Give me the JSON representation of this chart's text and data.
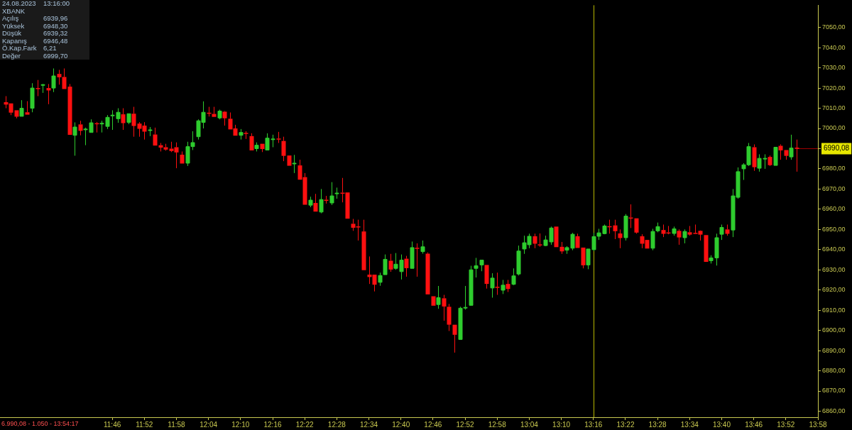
{
  "chart_data": {
    "type": "candlestick",
    "title": "XBANK",
    "annotations": [
      "24.08.2023",
      "13:16:00",
      "Açılış",
      "6939,96",
      "Yüksek",
      "6948,30",
      "Düşük",
      "6939,32",
      "Kapanış",
      "6946,48",
      "Ö.Kap.Fark",
      "6,21",
      "Değer",
      "6999,70",
      "6.990,08 - 1.050 - 13:54:17"
    ],
    "colors": [
      "#ff1010",
      "#ff1010",
      "#ff1010",
      "#2ecc2e",
      "#ff1010",
      "#2ecc2e",
      "#ff1010",
      "#2ecc2e",
      "#ff1010",
      "#2ecc2e",
      "#ff1010",
      "#ff1010",
      "#ff1010",
      "#2ecc2e",
      "#ff1010",
      "#2ecc2e",
      "#2ecc2e",
      "#ff1010",
      "#2ecc2e",
      "#2ecc2e",
      "#2ecc2e",
      "#2ecc2e",
      "#ff1010",
      "#2ecc2e",
      "#ff1010",
      "#ff1010",
      "#ff1010",
      "#2ecc2e",
      "#ff1010",
      "#ff1010",
      "#ff1010",
      "#ff1010",
      "#ff1010",
      "#ff1010",
      "#2ecc2e",
      "#2ecc2e",
      "#2ecc2e",
      "#2ecc2e",
      "#ff1010",
      "#ff1010",
      "#2ecc2e",
      "#ff1010",
      "#ff1010",
      "#ff1010",
      "#2ecc2e",
      "#ff1010",
      "#ff1010",
      "#2ecc2e",
      "#ff1010",
      "#2ecc2e",
      "#2ecc2e",
      "#ff1010",
      "#ff1010",
      "#ff1010",
      "#2ecc2e",
      "#ff1010",
      "#ff1010",
      "#2ecc2e",
      "#ff1010",
      "#2ecc2e",
      "#ff1010",
      "#2ecc2e",
      "#2ecc2e",
      "#ff1010",
      "#ff1010",
      "#ff1010",
      "#ff1010",
      "#ff1010",
      "#ff1010",
      "#ff1010",
      "#2ecc2e",
      "#2ecc2e",
      "#ff1010",
      "#2ecc2e",
      "#2ecc2e",
      "#ff1010",
      "#2ecc2e",
      "#ff1010",
      "#2ecc2e",
      "#ff1010",
      "#ff1010",
      "#2ecc2e",
      "#ff1010",
      "#ff1010",
      "#ff1010",
      "#2ecc2e",
      "#2ecc2e",
      "#2ecc2e",
      "#2ecc2e",
      "#2ecc2e",
      "#ff1010",
      "#2ecc2e",
      "#ff1010",
      "#2ecc2e",
      "#ff1010",
      "#2ecc2e",
      "#2ecc2e",
      "#2ecc2e",
      "#2ecc2e",
      "#ff1010",
      "#ff1010",
      "#2ecc2e",
      "#2ecc2e",
      "#ff1010",
      "#ff1010",
      "#2ecc2e",
      "#2ecc2e",
      "#ff1010",
      "#ff1010",
      "#2ecc2e",
      "#2ecc2e",
      "#2ecc2e",
      "#2ecc2e",
      "#ff1010",
      "#ff1010",
      "#ff1010",
      "#2ecc2e",
      "#ff1010",
      "#ff1010",
      "#ff1010",
      "#ff1010",
      "#2ecc2e",
      "#2ecc2e",
      "#ff1010",
      "#ff1010",
      "#2ecc2e",
      "#ff1010",
      "#2ecc2e",
      "#ff1010",
      "#ff1010",
      "#ff1010",
      "#ff1010",
      "#2ecc2e",
      "#2ecc2e",
      "#2ecc2e",
      "#ff1010",
      "#2ecc2e",
      "#2ecc2e",
      "#2ecc2e",
      "#2ecc2e",
      "#ff1010",
      "#2ecc2e",
      "#2ecc2e",
      "#ff1010",
      "#2ecc2e",
      "#ff1010",
      "#ff1010",
      "#2ecc2e",
      "#ff1010"
    ],
    "x": [
      "2023-08-24T11:26",
      "2023-08-24T11:27",
      "2023-08-24T11:28",
      "2023-08-24T11:29",
      "2023-08-24T11:30",
      "2023-08-24T11:31",
      "2023-08-24T11:32",
      "2023-08-24T11:33",
      "2023-08-24T11:34",
      "2023-08-24T11:35",
      "2023-08-24T11:36",
      "2023-08-24T11:37",
      "2023-08-24T11:38",
      "2023-08-24T11:39",
      "2023-08-24T11:40",
      "2023-08-24T11:41",
      "2023-08-24T11:42",
      "2023-08-24T11:43",
      "2023-08-24T11:44",
      "2023-08-24T11:45",
      "2023-08-24T11:46",
      "2023-08-24T11:47",
      "2023-08-24T11:48",
      "2023-08-24T11:49",
      "2023-08-24T11:50",
      "2023-08-24T11:51",
      "2023-08-24T11:52",
      "2023-08-24T11:53",
      "2023-08-24T11:54",
      "2023-08-24T11:55",
      "2023-08-24T11:56",
      "2023-08-24T11:57",
      "2023-08-24T11:58",
      "2023-08-24T11:59",
      "2023-08-24T12:00",
      "2023-08-24T12:01",
      "2023-08-24T12:02",
      "2023-08-24T12:03",
      "2023-08-24T12:04",
      "2023-08-24T12:05",
      "2023-08-24T12:06",
      "2023-08-24T12:07",
      "2023-08-24T12:08",
      "2023-08-24T12:09",
      "2023-08-24T12:10",
      "2023-08-24T12:11",
      "2023-08-24T12:12",
      "2023-08-24T12:13",
      "2023-08-24T12:14",
      "2023-08-24T12:15",
      "2023-08-24T12:16",
      "2023-08-24T12:17",
      "2023-08-24T12:18",
      "2023-08-24T12:19",
      "2023-08-24T12:20",
      "2023-08-24T12:21",
      "2023-08-24T12:22",
      "2023-08-24T12:23",
      "2023-08-24T12:24",
      "2023-08-24T12:25",
      "2023-08-24T12:26",
      "2023-08-24T12:27",
      "2023-08-24T12:28",
      "2023-08-24T12:29",
      "2023-08-24T12:30",
      "2023-08-24T12:31",
      "2023-08-24T12:32",
      "2023-08-24T12:33",
      "2023-08-24T12:34",
      "2023-08-24T12:35",
      "2023-08-24T12:36",
      "2023-08-24T12:37",
      "2023-08-24T12:38",
      "2023-08-24T12:39",
      "2023-08-24T12:40",
      "2023-08-24T12:41",
      "2023-08-24T12:42",
      "2023-08-24T12:43",
      "2023-08-24T12:44",
      "2023-08-24T12:45",
      "2023-08-24T12:46",
      "2023-08-24T12:47",
      "2023-08-24T12:48",
      "2023-08-24T12:49",
      "2023-08-24T12:50",
      "2023-08-24T12:51",
      "2023-08-24T12:52",
      "2023-08-24T12:53",
      "2023-08-24T12:54",
      "2023-08-24T12:55",
      "2023-08-24T12:56",
      "2023-08-24T12:57",
      "2023-08-24T12:58",
      "2023-08-24T12:59",
      "2023-08-24T13:00",
      "2023-08-24T13:01",
      "2023-08-24T13:02",
      "2023-08-24T13:03",
      "2023-08-24T13:04",
      "2023-08-24T13:05",
      "2023-08-24T13:06",
      "2023-08-24T13:07",
      "2023-08-24T13:08",
      "2023-08-24T13:09",
      "2023-08-24T13:10",
      "2023-08-24T13:11",
      "2023-08-24T13:12",
      "2023-08-24T13:13",
      "2023-08-24T13:14",
      "2023-08-24T13:15",
      "2023-08-24T13:16",
      "2023-08-24T13:17",
      "2023-08-24T13:18",
      "2023-08-24T13:19",
      "2023-08-24T13:20",
      "2023-08-24T13:21",
      "2023-08-24T13:22",
      "2023-08-24T13:23",
      "2023-08-24T13:24",
      "2023-08-24T13:25",
      "2023-08-24T13:26",
      "2023-08-24T13:27",
      "2023-08-24T13:28",
      "2023-08-24T13:29",
      "2023-08-24T13:30",
      "2023-08-24T13:31",
      "2023-08-24T13:32",
      "2023-08-24T13:33",
      "2023-08-24T13:34",
      "2023-08-24T13:35",
      "2023-08-24T13:36",
      "2023-08-24T13:37",
      "2023-08-24T13:38",
      "2023-08-24T13:39",
      "2023-08-24T13:40",
      "2023-08-24T13:41",
      "2023-08-24T13:42",
      "2023-08-24T13:43",
      "2023-08-24T13:44",
      "2023-08-24T13:45",
      "2023-08-24T13:46",
      "2023-08-24T13:47",
      "2023-08-24T13:48",
      "2023-08-24T13:49",
      "2023-08-24T13:50",
      "2023-08-24T13:51",
      "2023-08-24T13:52",
      "2023-08-24T13:53",
      "2023-08-24T13:54"
    ],
    "ohlc": [
      [
        7013,
        7016,
        7010,
        7012
      ],
      [
        7012.4,
        7012.4,
        7006.6,
        7008
      ],
      [
        7009,
        7009,
        7005,
        7006
      ],
      [
        7006,
        7014,
        7006,
        7010
      ],
      [
        7008,
        7013.5,
        7007,
        7007
      ],
      [
        7010,
        7022.4,
        7008,
        7020
      ],
      [
        7020,
        7024,
        7016,
        7019.7
      ],
      [
        7021.5,
        7022,
        7017.6,
        7021.7
      ],
      [
        7020,
        7022,
        7012,
        7019
      ],
      [
        7020,
        7029.7,
        7018,
        7026
      ],
      [
        7027,
        7029,
        7021.7,
        7025.5
      ],
      [
        7025.5,
        7029.7,
        7019.7,
        7019.7
      ],
      [
        7020.7,
        7022,
        6997,
        6997
      ],
      [
        6996.6,
        7003,
        6986.5,
        7000.7
      ],
      [
        7002,
        7003.8,
        6996.6,
        6999
      ],
      [
        6999.5,
        7000.4,
        6991.7,
        6999.7
      ],
      [
        6998,
        7004.5,
        6998,
        7002.8
      ],
      [
        7002.6,
        7003.2,
        6998,
        7002.4
      ],
      [
        7002.2,
        7003.8,
        6998,
        7002.6
      ],
      [
        7001,
        7006.6,
        6999.7,
        7005.5
      ],
      [
        7006.4,
        7009,
        6999.3,
        7006.6
      ],
      [
        7004.8,
        7010,
        7002.8,
        7008
      ],
      [
        7007,
        7010,
        6999.3,
        7002.8
      ],
      [
        7003,
        7007.3,
        7002.1,
        7007.3
      ],
      [
        7007.3,
        7010.7,
        6995.9,
        7001.4
      ],
      [
        7002.4,
        7003.1,
        6995.9,
        7000
      ],
      [
        7001.4,
        7003.1,
        6994.5,
        6998.6
      ],
      [
        6999.1,
        7000.7,
        6996.2,
        6999.3
      ],
      [
        6997,
        7000.4,
        6991.7,
        6991.7
      ],
      [
        6991.7,
        6992.8,
        6988.6,
        6990.7
      ],
      [
        6990.7,
        6992.4,
        6989,
        6989.7
      ],
      [
        6990,
        6993.4,
        6988.3,
        6989
      ],
      [
        6990.7,
        6993.1,
        6980.3,
        6988.3
      ],
      [
        6987,
        6988.6,
        6982.8,
        6982.8
      ],
      [
        6982.8,
        6993.4,
        6981.4,
        6991
      ],
      [
        6991,
        6998.6,
        6989.3,
        6993
      ],
      [
        6995.9,
        7004.5,
        6994.5,
        7003.8
      ],
      [
        7003,
        7013.4,
        7000,
        7008
      ],
      [
        7007.8,
        7010.7,
        7005.9,
        7007.6
      ],
      [
        7007.2,
        7010.7,
        7005.9,
        7005.9
      ],
      [
        7005.2,
        7009.3,
        7004.5,
        7008.6
      ],
      [
        7008.3,
        7008.6,
        7001.4,
        7005.2
      ],
      [
        7004.8,
        7007.9,
        6999.7,
        6999.7
      ],
      [
        7000,
        7001.8,
        6996.6,
        6996.6
      ],
      [
        6996.6,
        6999.7,
        6994.5,
        6998
      ],
      [
        6997.8,
        6998.6,
        6994.8,
        6997.6
      ],
      [
        6996.2,
        6997.6,
        6989.3,
        6989.3
      ],
      [
        6990,
        6993.1,
        6988.6,
        6991.7
      ],
      [
        6992.4,
        6992.4,
        6988.3,
        6990
      ],
      [
        6989.3,
        6997.6,
        6989.3,
        6995.2
      ],
      [
        6994.6,
        6996.9,
        6990.7,
        6994.8
      ],
      [
        6995,
        6998.3,
        6992.8,
        6994.8
      ],
      [
        6993.8,
        6995.9,
        6983.8,
        6986.6
      ],
      [
        6986.6,
        6986.6,
        6981.7,
        6981.7
      ],
      [
        6982.6,
        6986.9,
        6977.9,
        6982.8
      ],
      [
        6981.7,
        6984.5,
        6974.8,
        6974.8
      ],
      [
        6975.9,
        6977.9,
        6962.4,
        6962.4
      ],
      [
        6962,
        6966.2,
        6961,
        6964.5
      ],
      [
        6963.1,
        6967.6,
        6959,
        6959
      ],
      [
        6958.6,
        6970,
        6958,
        6964.8
      ],
      [
        6964.7,
        6966.6,
        6962.8,
        6964.5
      ],
      [
        6963.1,
        6973.4,
        6962.1,
        6966.6
      ],
      [
        6967.8,
        6970.7,
        6965.2,
        6968
      ],
      [
        6968.2,
        6975.5,
        6963.4,
        6968
      ],
      [
        6968.3,
        6968.3,
        6955.5,
        6955.5
      ],
      [
        6952.8,
        6955.2,
        6949.3,
        6951
      ],
      [
        6951.5,
        6954.8,
        6944.5,
        6951.4
      ],
      [
        6949,
        6954.8,
        6930,
        6930
      ],
      [
        6927.6,
        6936.6,
        6923,
        6926.6
      ],
      [
        6927.6,
        6927.6,
        6919.3,
        6922.8
      ],
      [
        6923.8,
        6928.6,
        6922.1,
        6927.2
      ],
      [
        6927.6,
        6937.6,
        6927.6,
        6935.2
      ],
      [
        6934.5,
        6937.9,
        6929,
        6930.3
      ],
      [
        6930.7,
        6938.3,
        6930,
        6932.8
      ],
      [
        6929.1,
        6937.6,
        6925.2,
        6934.8
      ],
      [
        6935.5,
        6936.9,
        6926.6,
        6931
      ],
      [
        6930.7,
        6944,
        6930.7,
        6941
      ],
      [
        6940.9,
        6943.1,
        6926.6,
        6940.7
      ],
      [
        6939,
        6944.5,
        6938,
        6941.4
      ],
      [
        6938,
        6938.6,
        6918,
        6918
      ],
      [
        6916.9,
        6916.9,
        6912.4,
        6912.4
      ],
      [
        6912.8,
        6922,
        6910.7,
        6916.2
      ],
      [
        6915.9,
        6917.6,
        6904.8,
        6912
      ],
      [
        6911.7,
        6913.1,
        6899.7,
        6903
      ],
      [
        6902.8,
        6902.8,
        6889,
        6898
      ],
      [
        6895.5,
        6911.7,
        6895.5,
        6911
      ],
      [
        6911.2,
        6922,
        6910.3,
        6911.4
      ],
      [
        6912.4,
        6932,
        6912.4,
        6930
      ],
      [
        6930.7,
        6935.9,
        6926.2,
        6932
      ],
      [
        6932.4,
        6934.8,
        6929.3,
        6934.8
      ],
      [
        6932.4,
        6932.4,
        6920.7,
        6923.2
      ],
      [
        6921,
        6928.3,
        6916.2,
        6925.9
      ],
      [
        6921.6,
        6928.6,
        6917.6,
        6921.4
      ],
      [
        6919.9,
        6925,
        6918,
        6922.4
      ],
      [
        6923,
        6925,
        6919,
        6920.7
      ],
      [
        6922.8,
        6930.7,
        6922.4,
        6927
      ],
      [
        6927.9,
        6942,
        6927.2,
        6939.3
      ],
      [
        6940.3,
        6946.9,
        6937.9,
        6943.4
      ],
      [
        6942.4,
        6947.9,
        6940.7,
        6946.6
      ],
      [
        6946.6,
        6947.9,
        6940.7,
        6943.1
      ],
      [
        6942.6,
        6948,
        6941.4,
        6942.4
      ],
      [
        6942,
        6946.9,
        6941.7,
        6944.8
      ],
      [
        6943.8,
        6951.4,
        6942.4,
        6950.7
      ],
      [
        6951.4,
        6951.4,
        6941.4,
        6941.4
      ],
      [
        6941.4,
        6943.8,
        6937.9,
        6939.3
      ],
      [
        6939.7,
        6941.7,
        6937.9,
        6941
      ],
      [
        6940.7,
        6948.3,
        6939.7,
        6947.6
      ],
      [
        6946.6,
        6947.9,
        6941,
        6941
      ],
      [
        6941,
        6941,
        6930.7,
        6932.4
      ],
      [
        6932.4,
        6940.3,
        6930.3,
        6940.3
      ],
      [
        6939.96,
        6948.3,
        6939.32,
        6946.48
      ],
      [
        6946.6,
        6950.3,
        6944.8,
        6948.3
      ],
      [
        6947.9,
        6952.4,
        6947.6,
        6951.7
      ],
      [
        6951.6,
        6954.8,
        6947.9,
        6951.4
      ],
      [
        6952,
        6954.8,
        6945.2,
        6949.3
      ],
      [
        6948,
        6950,
        6940.7,
        6945.9
      ],
      [
        6945.9,
        6957.6,
        6944.5,
        6956.6
      ],
      [
        6955.9,
        6962.4,
        6950.7,
        6955.7
      ],
      [
        6955.5,
        6955.5,
        6947.9,
        6948.6
      ],
      [
        6946.6,
        6947.6,
        6940.7,
        6943.1
      ],
      [
        6944.8,
        6944.8,
        6940.7,
        6940.7
      ],
      [
        6940.7,
        6950.3,
        6939.7,
        6949
      ],
      [
        6949.3,
        6953.4,
        6948.6,
        6951.4
      ],
      [
        6949.7,
        6952.4,
        6946.2,
        6948
      ],
      [
        6948.5,
        6951.7,
        6947.6,
        6948.3
      ],
      [
        6948,
        6951.4,
        6946.9,
        6950.3
      ],
      [
        6949.3,
        6950,
        6942.4,
        6946.2
      ],
      [
        6945.9,
        6950,
        6943.1,
        6949
      ],
      [
        6948.6,
        6951.7,
        6946.9,
        6947.6
      ],
      [
        6948.3,
        6952.4,
        6947.9,
        6948.1
      ],
      [
        6949.3,
        6949.5,
        6944.5,
        6947.6
      ],
      [
        6947.2,
        6947.2,
        6934.1,
        6934.1
      ],
      [
        6934.5,
        6937.2,
        6933.1,
        6935.9
      ],
      [
        6935.9,
        6947.9,
        6932.1,
        6945.9
      ],
      [
        6947.6,
        6952.4,
        6944.8,
        6951
      ],
      [
        6950,
        6952.4,
        6946.9,
        6948
      ],
      [
        6949.7,
        6970,
        6946.2,
        6966.6
      ],
      [
        6965.9,
        6980.7,
        6965.2,
        6978.6
      ],
      [
        6980,
        6982.8,
        6974.5,
        6982
      ],
      [
        6982,
        6992.8,
        6981.4,
        6991
      ],
      [
        6990.7,
        6992.1,
        6979,
        6981
      ],
      [
        6980.3,
        6987.2,
        6978.6,
        6985.2
      ],
      [
        6985,
        6987.2,
        6980,
        6985.2
      ],
      [
        6985.9,
        6986.6,
        6981.4,
        6982
      ],
      [
        6981.7,
        6990.7,
        6981.7,
        6990.7
      ],
      [
        6991.4,
        6992.1,
        6984.5,
        6989.3
      ],
      [
        6989.3,
        6989.3,
        6984.5,
        6986.6
      ],
      [
        6985.9,
        6996.9,
        6984.5,
        6990.3
      ],
      [
        6990.5,
        6994.5,
        6978.6,
        6990.08
      ]
    ],
    "xlim": [
      "2023-08-24T11:25",
      "2023-08-24T13:58"
    ],
    "xticks": [
      {
        "value": "2023-08-24T11:46",
        "label": "11:46"
      },
      {
        "value": "2023-08-24T11:52",
        "label": "11:52"
      },
      {
        "value": "2023-08-24T11:58",
        "label": "11:58"
      },
      {
        "value": "2023-08-24T12:04",
        "label": "12:04"
      },
      {
        "value": "2023-08-24T12:10",
        "label": "12:10"
      },
      {
        "value": "2023-08-24T12:16",
        "label": "12:16"
      },
      {
        "value": "2023-08-24T12:22",
        "label": "12:22"
      },
      {
        "value": "2023-08-24T12:28",
        "label": "12:28"
      },
      {
        "value": "2023-08-24T12:34",
        "label": "12:34"
      },
      {
        "value": "2023-08-24T12:40",
        "label": "12:40"
      },
      {
        "value": "2023-08-24T12:46",
        "label": "12:46"
      },
      {
        "value": "2023-08-24T12:52",
        "label": "12:52"
      },
      {
        "value": "2023-08-24T12:58",
        "label": "12:58"
      },
      {
        "value": "2023-08-24T13:04",
        "label": "13:04"
      },
      {
        "value": "2023-08-24T13:10",
        "label": "13:10"
      },
      {
        "value": "2023-08-24T13:16",
        "label": "13:16"
      },
      {
        "value": "2023-08-24T13:22",
        "label": "13:22"
      },
      {
        "value": "2023-08-24T13:28",
        "label": "13:28"
      },
      {
        "value": "2023-08-24T13:34",
        "label": "13:34"
      },
      {
        "value": "2023-08-24T13:40",
        "label": "13:40"
      },
      {
        "value": "2023-08-24T13:46",
        "label": "13:46"
      },
      {
        "value": "2023-08-24T13:52",
        "label": "13:52"
      },
      {
        "value": "2023-08-24T13:58",
        "label": "13:58"
      }
    ],
    "ylim": [
      6857,
      7061
    ],
    "yticks": [
      {
        "value": 6860,
        "label": "6860,00"
      },
      {
        "value": 6870,
        "label": "6870,00"
      },
      {
        "value": 6880,
        "label": "6880,00"
      },
      {
        "value": 6890,
        "label": "6890,00"
      },
      {
        "value": 6900,
        "label": "6900,00"
      },
      {
        "value": 6910,
        "label": "6910,00"
      },
      {
        "value": 6920,
        "label": "6920,00"
      },
      {
        "value": 6930,
        "label": "6930,00"
      },
      {
        "value": 6940,
        "label": "6940,00"
      },
      {
        "value": 6950,
        "label": "6950,00"
      },
      {
        "value": 6960,
        "label": "6960,00"
      },
      {
        "value": 6970,
        "label": "6970,00"
      },
      {
        "value": 6980,
        "label": "6980,00"
      },
      {
        "value": 6990,
        "label": null
      },
      {
        "value": 7000,
        "label": "7000,00"
      },
      {
        "value": 7010,
        "label": "7010,00"
      },
      {
        "value": 7020,
        "label": "7020,00"
      },
      {
        "value": 7030,
        "label": "7030,00"
      },
      {
        "value": 7040,
        "label": "7040,00"
      },
      {
        "value": 7050,
        "label": "7050,00"
      }
    ],
    "ref_lines": [
      {
        "axis": "x",
        "value": "2023-08-24T13:16",
        "color": "#b8b800"
      },
      {
        "axis": "y",
        "value": 6990.08,
        "label": "6990,08",
        "color": "#a00000"
      }
    ]
  }
}
